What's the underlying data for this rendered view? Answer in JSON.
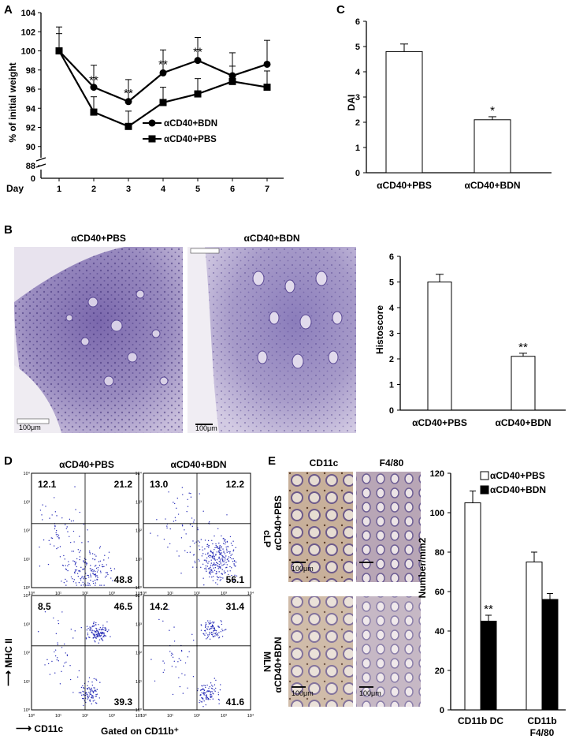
{
  "panels": {
    "A": "A",
    "B": "B",
    "C": "C",
    "D": "D",
    "E": "E"
  },
  "chart_data": [
    {
      "id": "A",
      "type": "line",
      "ylabel": "% of initial weight",
      "xlabel": "Day",
      "x": [
        1,
        2,
        3,
        4,
        5,
        6,
        7
      ],
      "ylim": [
        88,
        104
      ],
      "yticks": [
        88,
        90,
        92,
        94,
        96,
        98,
        100,
        102,
        104
      ],
      "yzero_label": "0",
      "series": [
        {
          "name": "αCD40+BDN",
          "marker": "circle",
          "values": [
            100,
            96.2,
            94.7,
            97.7,
            99.0,
            97.4,
            98.6
          ],
          "err": [
            2.5,
            2.3,
            2.3,
            2.4,
            2.4,
            2.4,
            2.5
          ]
        },
        {
          "name": "αCD40+PBS",
          "marker": "square",
          "values": [
            100,
            93.6,
            92.1,
            94.6,
            95.5,
            96.8,
            96.2
          ],
          "err": [
            1.8,
            1.6,
            1.6,
            1.6,
            1.6,
            1.6,
            1.7
          ]
        }
      ],
      "annotations": [
        {
          "x": 2,
          "text": "**"
        },
        {
          "x": 3,
          "text": "**"
        },
        {
          "x": 4,
          "text": "**"
        },
        {
          "x": 5,
          "text": "**"
        }
      ]
    },
    {
      "id": "C",
      "type": "bar",
      "ylabel": "DAI",
      "categories": [
        "αCD40+PBS",
        "αCD40+BDN"
      ],
      "values": [
        4.8,
        2.1
      ],
      "err": [
        0.3,
        0.12
      ],
      "ylim": [
        0,
        6
      ],
      "yticks": [
        0,
        1,
        2,
        3,
        4,
        5,
        6
      ],
      "annotations": [
        "",
        "*"
      ]
    },
    {
      "id": "B",
      "type": "bar",
      "ylabel": "Histoscore",
      "categories": [
        "αCD40+PBS",
        "αCD40+BDN"
      ],
      "values": [
        5.0,
        2.1
      ],
      "err": [
        0.3,
        0.12
      ],
      "ylim": [
        0,
        6
      ],
      "yticks": [
        0,
        1,
        2,
        3,
        4,
        5,
        6
      ],
      "annotations": [
        "",
        "**"
      ]
    },
    {
      "id": "E",
      "type": "bar",
      "ylabel": "Number/mm2",
      "categories": [
        "CD11b DC",
        "CD11b F4/80"
      ],
      "category_lines": [
        [
          "CD11b DC"
        ],
        [
          "CD11b",
          "F4/80"
        ]
      ],
      "series": [
        {
          "name": "αCD40+PBS",
          "fill": "#ffffff",
          "values": [
            105,
            75
          ],
          "err": [
            6,
            5
          ]
        },
        {
          "name": "αCD40+BDN",
          "fill": "#000000",
          "values": [
            45,
            56
          ],
          "err": [
            3,
            3
          ]
        }
      ],
      "ylim": [
        0,
        120
      ],
      "yticks": [
        0,
        20,
        40,
        60,
        80,
        100,
        120
      ],
      "annotations": [
        {
          "category": 0,
          "series": 1,
          "text": "**"
        }
      ]
    }
  ],
  "histology_B": {
    "titles": [
      "αCD40+PBS",
      "αCD40+BDN"
    ],
    "scale_bars": [
      "100μm",
      "100μm"
    ]
  },
  "flow_D": {
    "columns": [
      "αCD40+PBS",
      "αCD40+BDN"
    ],
    "rows": [
      "cLP",
      "MLN"
    ],
    "quadrants": [
      [
        {
          "ul": "12.1",
          "ur": "21.2",
          "lr": "48.8"
        },
        {
          "ul": "13.0",
          "ur": "12.2",
          "lr": "56.1"
        }
      ],
      [
        {
          "ul": "8.5",
          "ur": "46.5",
          "lr": "39.3"
        },
        {
          "ul": "14.2",
          "ur": "31.4",
          "lr": "41.6"
        }
      ]
    ],
    "axis_ticks": [
      "10⁰",
      "10¹",
      "10²",
      "10³",
      "10⁴"
    ],
    "ylabel": "MHC II",
    "xlabel": "CD11c",
    "gate_note": "Gated on CD11b⁺"
  },
  "ihc_E": {
    "columns": [
      "CD11c",
      "F4/80"
    ],
    "rows": [
      "αCD40+PBS",
      "αCD40+BDN"
    ],
    "scale_bar": "100μm"
  },
  "colors": {
    "axis": "#000000",
    "dots": "#2a2fb8",
    "tissue": "#8a78b5",
    "ihc": "#b9967a"
  }
}
